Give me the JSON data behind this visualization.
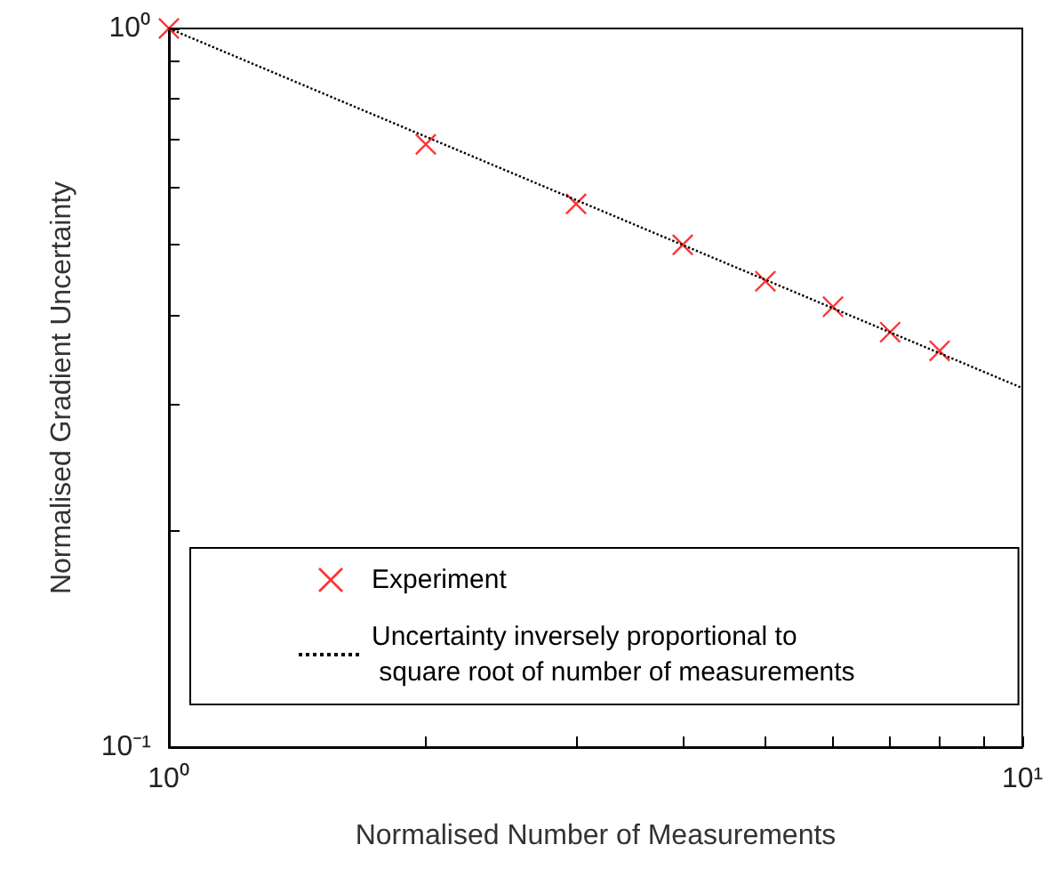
{
  "chart_data": {
    "type": "scatter",
    "xlabel": "Normalised Number of Measurements",
    "ylabel": "Normalised Gradient Uncertainty",
    "log": "xy",
    "grid": false,
    "legend": "bottom",
    "xlim": [
      1,
      10
    ],
    "ylim": [
      0.1,
      1
    ],
    "xticks": [
      {
        "value": 1,
        "label": "10⁰"
      },
      {
        "value": 2,
        "label": null
      },
      {
        "value": 3,
        "label": null
      },
      {
        "value": 4,
        "label": null
      },
      {
        "value": 5,
        "label": null
      },
      {
        "value": 6,
        "label": null
      },
      {
        "value": 7,
        "label": null
      },
      {
        "value": 8,
        "label": null
      },
      {
        "value": 9,
        "label": null
      },
      {
        "value": 10,
        "label": "10¹"
      }
    ],
    "yticks": [
      {
        "value": 0.1,
        "label": "10⁻¹"
      },
      {
        "value": 0.2,
        "label": null
      },
      {
        "value": 0.3,
        "label": null
      },
      {
        "value": 0.4,
        "label": null
      },
      {
        "value": 0.5,
        "label": null
      },
      {
        "value": 0.6,
        "label": null
      },
      {
        "value": 0.7,
        "label": null
      },
      {
        "value": 0.8,
        "label": null
      },
      {
        "value": 0.9,
        "label": null
      },
      {
        "value": 1,
        "label": "10⁰"
      }
    ],
    "series": [
      {
        "name": "Experiment",
        "type": "scatter",
        "marker": "cross",
        "color": "#ff0000",
        "x": [
          1,
          2,
          3,
          4,
          5,
          6,
          7,
          8
        ],
        "values": [
          1,
          0.69,
          0.57,
          0.5,
          0.445,
          0.41,
          0.378,
          0.356
        ]
      },
      {
        "name": "Uncertainty inversely proportional to\n square root of number of measurements",
        "type": "line",
        "marker": "none",
        "line_style": "dotted",
        "color": "#000000",
        "x": [
          1,
          10
        ],
        "values": [
          1,
          0.316
        ]
      }
    ]
  }
}
